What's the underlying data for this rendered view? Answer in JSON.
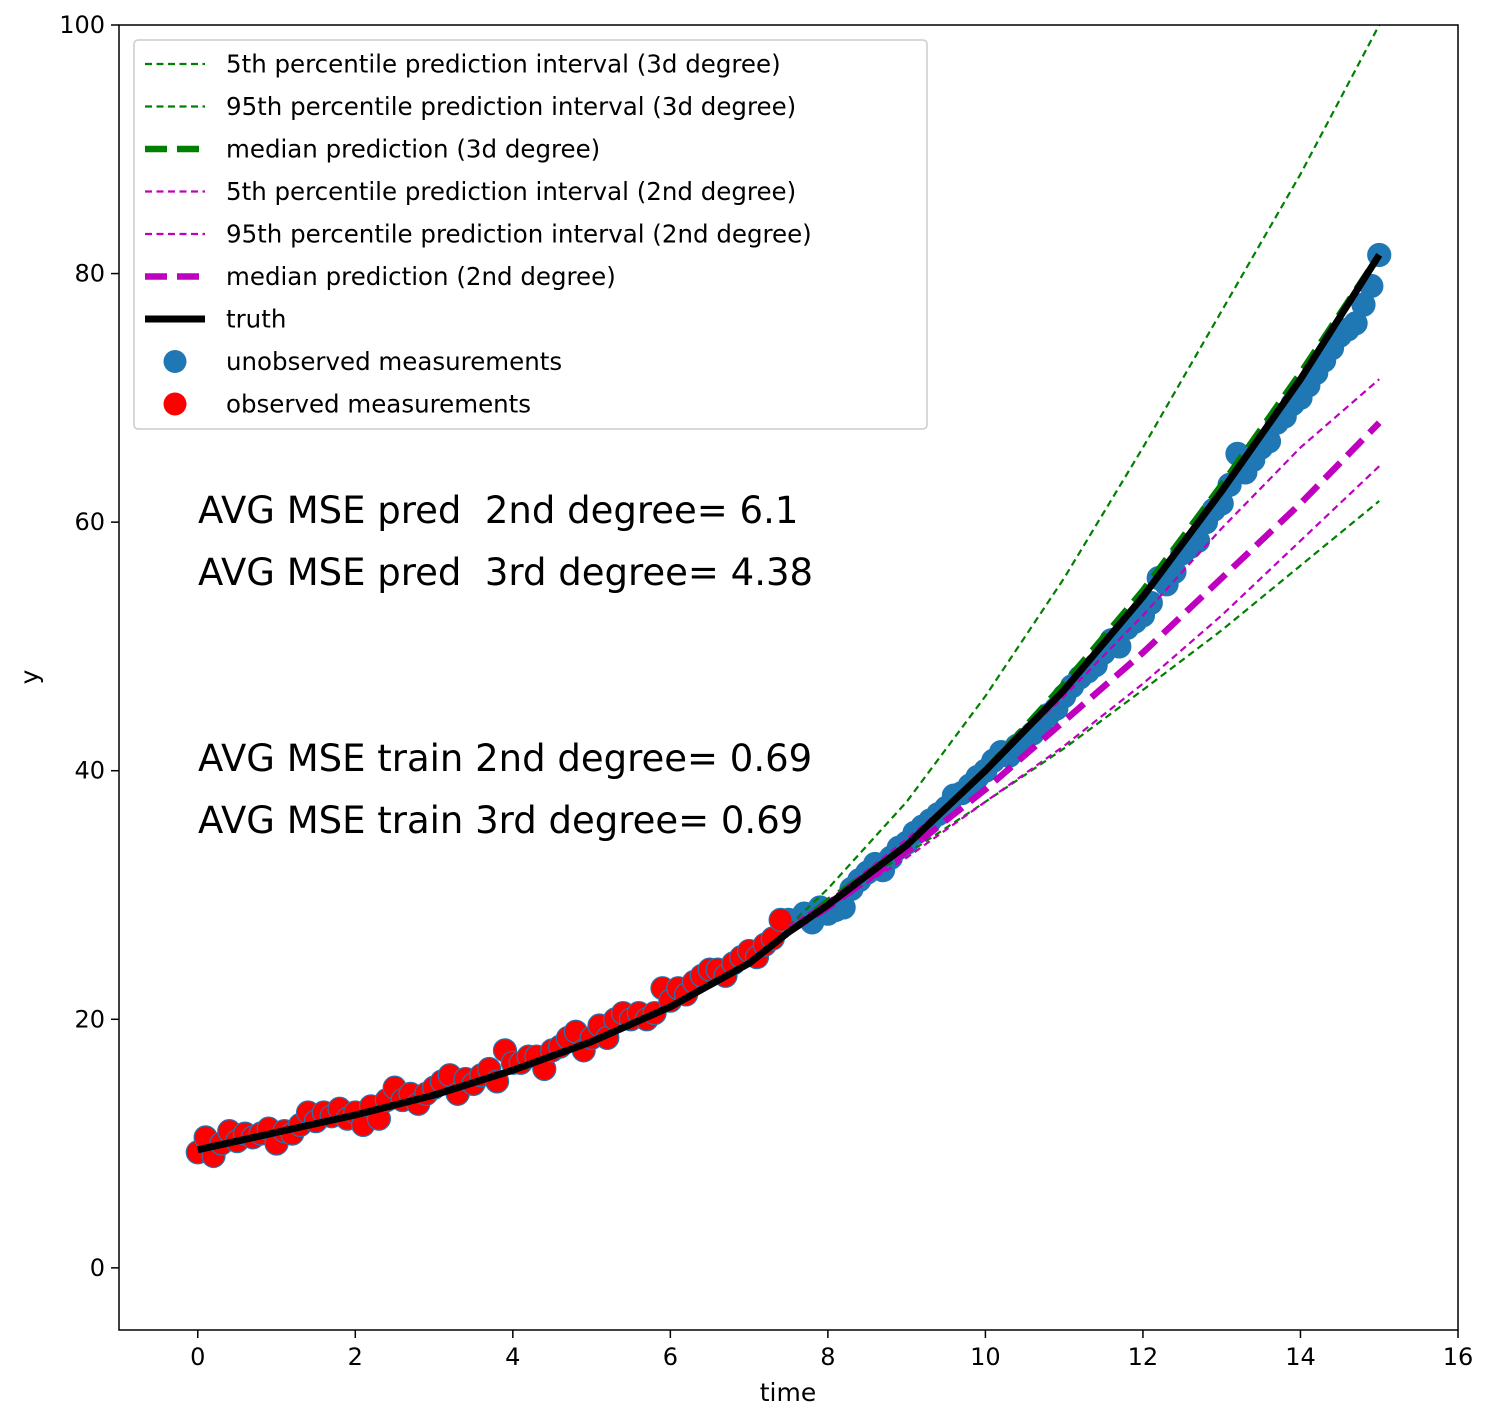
{
  "chart_data": {
    "type": "scatter",
    "title": "",
    "xlabel": "time",
    "ylabel": "y",
    "xlim": [
      -1,
      16
    ],
    "ylim": [
      -5,
      100
    ],
    "xticks": [
      "0",
      "2",
      "4",
      "6",
      "8",
      "10",
      "12",
      "14",
      "16"
    ],
    "yticks": [
      "0",
      "20",
      "40",
      "60",
      "80",
      "100"
    ],
    "grid": false,
    "legend_position": "top-left",
    "colors": {
      "green": "#008000",
      "magenta": "#bf00bf",
      "black": "#000000",
      "blue": "#1f77b4",
      "red": "#ff0000"
    },
    "annotations": [
      "AVG MSE pred  2nd degree= 6.1",
      "AVG MSE pred  3rd degree= 4.38",
      "AVG MSE train 2nd degree= 0.69",
      "AVG MSE train 3rd degree= 0.69"
    ],
    "series": [
      {
        "name": "5th percentile prediction interval (3d degree)",
        "kind": "line",
        "color": "#008000",
        "dash": "dashed-thin",
        "x": [
          7.5,
          8,
          9,
          10,
          11,
          12,
          13,
          14,
          15
        ],
        "y": [
          27.5,
          29.5,
          33.3,
          37.5,
          41.8,
          46.5,
          51.3,
          56.5,
          61.7
        ]
      },
      {
        "name": "95th percentile prediction interval (3d degree)",
        "kind": "line",
        "color": "#008000",
        "dash": "dashed-thin",
        "x": [
          7.5,
          8,
          9,
          10,
          11,
          12,
          13,
          14,
          15
        ],
        "y": [
          27.5,
          30.5,
          37.5,
          46.0,
          55.5,
          66.0,
          77.0,
          88.0,
          100.0
        ]
      },
      {
        "name": "median prediction (3d degree)",
        "kind": "line",
        "color": "#008000",
        "dash": "dashed-thick",
        "x": [
          7.5,
          8,
          9,
          10,
          11,
          12,
          13,
          14,
          15
        ],
        "y": [
          27.0,
          29.5,
          34.0,
          40.0,
          47.0,
          54.5,
          63.0,
          72.0,
          81.5
        ]
      },
      {
        "name": "5th percentile prediction interval (2nd degree)",
        "kind": "line",
        "color": "#bf00bf",
        "dash": "dashed-thin",
        "x": [
          7.5,
          8,
          9,
          10,
          11,
          12,
          13,
          14,
          15
        ],
        "y": [
          27.0,
          29.0,
          33.0,
          37.5,
          42.0,
          47.0,
          52.5,
          58.5,
          64.5
        ]
      },
      {
        "name": "95th percentile prediction interval (2nd degree)",
        "kind": "line",
        "color": "#bf00bf",
        "dash": "dashed-thin",
        "x": [
          7.5,
          8,
          9,
          10,
          11,
          12,
          13,
          14,
          15
        ],
        "y": [
          27.5,
          29.5,
          34.5,
          40.0,
          46.0,
          52.5,
          59.5,
          66.0,
          71.5
        ]
      },
      {
        "name": "median prediction (2nd degree)",
        "kind": "line",
        "color": "#bf00bf",
        "dash": "dashed-thick",
        "x": [
          7.5,
          8,
          9,
          10,
          11,
          12,
          13,
          14,
          15
        ],
        "y": [
          27.0,
          29.0,
          33.5,
          38.5,
          44.0,
          49.5,
          55.5,
          61.5,
          68.0
        ]
      },
      {
        "name": "truth",
        "kind": "line",
        "color": "#000000",
        "dash": "solid-thick",
        "x": [
          0,
          1,
          2,
          3,
          4,
          5,
          6,
          7,
          7.5,
          8,
          9,
          10,
          11,
          12,
          13,
          14,
          15
        ],
        "y": [
          9.5,
          10.9,
          12.3,
          13.9,
          15.9,
          18.2,
          21.0,
          24.5,
          27.0,
          29.2,
          34.0,
          40.0,
          46.5,
          54.0,
          62.5,
          71.5,
          81.5
        ]
      },
      {
        "name": "unobserved measurements",
        "kind": "scatter",
        "color": "#1f77b4",
        "x": [
          7.5,
          7.7,
          7.8,
          7.9,
          8.0,
          8.1,
          8.2,
          8.3,
          8.4,
          8.5,
          8.6,
          8.7,
          8.8,
          8.9,
          9.0,
          9.1,
          9.2,
          9.3,
          9.4,
          9.5,
          9.6,
          9.7,
          9.8,
          9.9,
          10.0,
          10.1,
          10.2,
          10.3,
          10.4,
          10.5,
          10.6,
          10.7,
          10.8,
          10.9,
          11.0,
          11.1,
          11.2,
          11.3,
          11.4,
          11.5,
          11.6,
          11.7,
          11.8,
          11.9,
          12.0,
          12.1,
          12.2,
          12.3,
          12.4,
          12.5,
          12.6,
          12.7,
          12.8,
          12.9,
          13.0,
          13.1,
          13.2,
          13.3,
          13.4,
          13.5,
          13.6,
          13.7,
          13.8,
          13.9,
          14.0,
          14.1,
          14.2,
          14.3,
          14.4,
          14.5,
          14.6,
          14.7,
          14.8,
          14.9,
          15.0
        ],
        "y": [
          28.0,
          28.5,
          27.8,
          29.0,
          28.5,
          28.8,
          29.0,
          30.5,
          31.2,
          31.8,
          32.5,
          32.0,
          33.0,
          33.8,
          34.2,
          35.0,
          35.5,
          36.0,
          36.5,
          37.0,
          38.0,
          38.2,
          38.8,
          39.5,
          40.0,
          40.8,
          41.5,
          41.2,
          42.0,
          42.5,
          43.0,
          43.5,
          44.5,
          45.0,
          46.0,
          46.8,
          47.5,
          48.0,
          48.5,
          49.5,
          50.5,
          50.0,
          51.5,
          52.0,
          52.5,
          53.5,
          55.5,
          55.0,
          56.0,
          57.5,
          58.0,
          58.5,
          60.0,
          61.0,
          61.5,
          63.0,
          65.5,
          64.0,
          65.0,
          66.0,
          66.5,
          68.0,
          68.5,
          69.5,
          70.0,
          71.0,
          72.0,
          73.0,
          74.0,
          75.0,
          75.5,
          76.0,
          77.5,
          79.0,
          81.5
        ]
      },
      {
        "name": "observed measurements",
        "kind": "scatter",
        "color": "#ff0000",
        "x": [
          0.0,
          0.1,
          0.2,
          0.3,
          0.4,
          0.5,
          0.6,
          0.7,
          0.8,
          0.9,
          1.0,
          1.1,
          1.2,
          1.3,
          1.4,
          1.5,
          1.6,
          1.7,
          1.8,
          1.9,
          2.0,
          2.1,
          2.2,
          2.3,
          2.4,
          2.5,
          2.6,
          2.7,
          2.8,
          2.9,
          3.0,
          3.1,
          3.2,
          3.3,
          3.4,
          3.5,
          3.6,
          3.7,
          3.8,
          3.9,
          4.0,
          4.1,
          4.2,
          4.3,
          4.4,
          4.5,
          4.6,
          4.7,
          4.8,
          4.9,
          5.0,
          5.1,
          5.2,
          5.3,
          5.4,
          5.5,
          5.6,
          5.7,
          5.8,
          5.9,
          6.0,
          6.1,
          6.2,
          6.3,
          6.4,
          6.5,
          6.6,
          6.7,
          6.8,
          6.9,
          7.0,
          7.1,
          7.2,
          7.3,
          7.4
        ],
        "y": [
          9.3,
          10.5,
          9.0,
          10.0,
          11.0,
          10.2,
          10.8,
          10.5,
          10.8,
          11.2,
          10.0,
          11.0,
          10.8,
          11.5,
          12.5,
          11.8,
          12.5,
          12.2,
          12.8,
          12.0,
          12.5,
          11.5,
          13.0,
          12.0,
          13.5,
          14.5,
          13.5,
          14.0,
          13.2,
          14.0,
          14.5,
          15.0,
          15.5,
          14.0,
          15.2,
          14.8,
          15.5,
          16.0,
          15.0,
          17.5,
          16.5,
          16.5,
          17.0,
          17.0,
          16.0,
          17.5,
          17.8,
          18.5,
          19.0,
          17.5,
          18.5,
          19.5,
          18.5,
          20.0,
          20.5,
          20.0,
          20.5,
          20.0,
          20.5,
          22.5,
          21.5,
          22.5,
          22.0,
          23.0,
          23.5,
          24.0,
          24.0,
          23.5,
          24.5,
          25.0,
          25.5,
          25.0,
          26.0,
          26.5,
          28.0
        ]
      }
    ]
  }
}
